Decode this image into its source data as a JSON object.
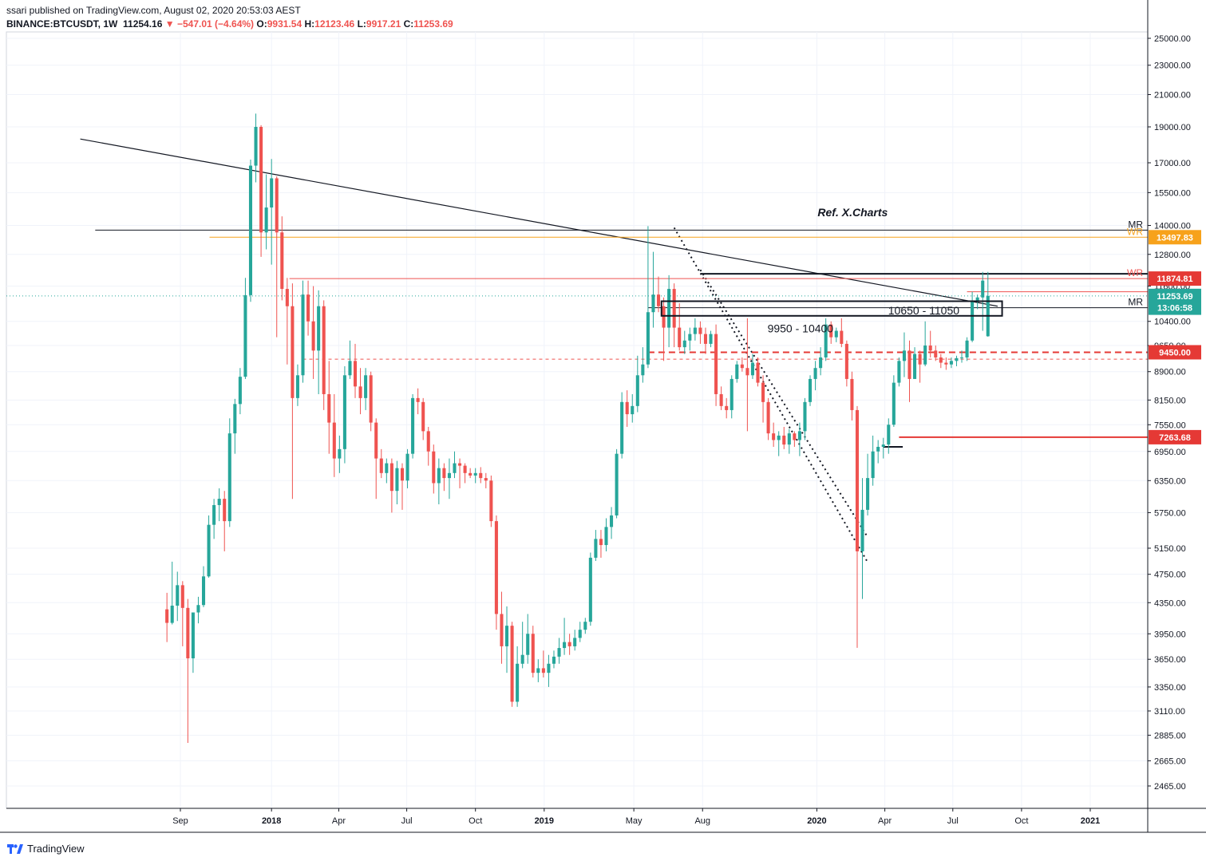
{
  "header": {
    "published": "ssari published on TradingView.com, August 02, 2020 20:53:03 AEST",
    "symbol": "BINANCE:BTCUSDT, 1W",
    "last": "11254.16",
    "change": "−547.01 (−4.64%)",
    "o_label": "O:",
    "o_val": "9931.54",
    "h_label": "H:",
    "h_val": "12123.46",
    "l_label": "L:",
    "l_val": "9917.21",
    "c_label": "C:",
    "c_val": "11253.69"
  },
  "footer": {
    "brand": "TradingView"
  },
  "colors": {
    "up": "#26a69a",
    "down": "#ef5350",
    "accent_orange": "#f7a21b",
    "red_tag": "#e53935"
  },
  "chart_data": {
    "type": "candlestick",
    "title": "",
    "timeframe": "1W",
    "y_scale": "log",
    "ylim": [
      2300,
      25500
    ],
    "y_ticks": [
      "25000.00",
      "23000.00",
      "21000.00",
      "19000.00",
      "17000.00",
      "15500.00",
      "14000.00",
      "12800.00",
      "11600.00",
      "10400.00",
      "9650.00",
      "8900.00",
      "8150.00",
      "7550.00",
      "6950.00",
      "6350.00",
      "5750.00",
      "5150.00",
      "4750.00",
      "4350.00",
      "3950.00",
      "3650.00",
      "3350.00",
      "3110.00",
      "2885.00",
      "2665.00",
      "2465.00"
    ],
    "x_ticks": [
      {
        "label": "Sep",
        "date": "2017-09-01",
        "bold": false
      },
      {
        "label": "2018",
        "date": "2018-01-01",
        "bold": true
      },
      {
        "label": "Apr",
        "date": "2018-04-01",
        "bold": false
      },
      {
        "label": "Jul",
        "date": "2018-07-01",
        "bold": false
      },
      {
        "label": "Oct",
        "date": "2018-10-01",
        "bold": false
      },
      {
        "label": "2019",
        "date": "2019-01-01",
        "bold": true
      },
      {
        "label": "May",
        "date": "2019-05-01",
        "bold": false
      },
      {
        "label": "Aug",
        "date": "2019-08-01",
        "bold": false
      },
      {
        "label": "2020",
        "date": "2020-01-01",
        "bold": true
      },
      {
        "label": "Apr",
        "date": "2020-04-01",
        "bold": false
      },
      {
        "label": "Jul",
        "date": "2020-07-01",
        "bold": false
      },
      {
        "label": "Oct",
        "date": "2020-10-01",
        "bold": false
      },
      {
        "label": "2021",
        "date": "2021-01-01",
        "bold": true
      }
    ],
    "first_bar_date": "2017-08-14",
    "ohlc": [
      [
        4261,
        4485,
        3850,
        4086
      ],
      [
        4086,
        4939,
        4066,
        4310
      ],
      [
        4310,
        4788,
        4110,
        4592
      ],
      [
        4592,
        4650,
        3800,
        4280
      ],
      [
        4280,
        4400,
        2817,
        3661
      ],
      [
        3661,
        4200,
        3500,
        4220
      ],
      [
        4220,
        4430,
        4080,
        4318
      ],
      [
        4318,
        4870,
        4290,
        4719
      ],
      [
        4719,
        5700,
        4700,
        5537
      ],
      [
        5537,
        6000,
        5300,
        5886
      ],
      [
        5886,
        6200,
        5600,
        6002
      ],
      [
        6002,
        6150,
        5100,
        5600
      ],
      [
        5600,
        7700,
        5500,
        7350
      ],
      [
        7350,
        8180,
        6900,
        8050
      ],
      [
        8050,
        9000,
        7800,
        8760
      ],
      [
        8760,
        11900,
        8700,
        11280
      ],
      [
        11280,
        17170,
        11050,
        16850
      ],
      [
        16850,
        19798,
        16000,
        19000
      ],
      [
        19000,
        19100,
        12700,
        13700
      ],
      [
        13700,
        16400,
        13000,
        14800
      ],
      [
        14800,
        17200,
        12400,
        16200
      ],
      [
        16200,
        16300,
        9900,
        13700
      ],
      [
        13700,
        14400,
        11100,
        11500
      ],
      [
        11500,
        11900,
        9100,
        10900
      ],
      [
        10900,
        11700,
        6000,
        8200
      ],
      [
        8200,
        9100,
        8000,
        8800
      ],
      [
        8800,
        11800,
        8600,
        11300
      ],
      [
        11300,
        11800,
        9950,
        10400
      ],
      [
        10400,
        11600,
        8700,
        9500
      ],
      [
        9500,
        11450,
        8300,
        10900
      ],
      [
        10900,
        11100,
        7900,
        8300
      ],
      [
        8300,
        9200,
        6900,
        7600
      ],
      [
        7600,
        8300,
        6420,
        6800
      ],
      [
        6800,
        7300,
        6500,
        7000
      ],
      [
        7000,
        9050,
        6700,
        8800
      ],
      [
        8800,
        9800,
        8700,
        9200
      ],
      [
        9200,
        9700,
        8200,
        8500
      ],
      [
        8500,
        9000,
        7800,
        8200
      ],
      [
        8200,
        9000,
        7900,
        8800
      ],
      [
        8800,
        8900,
        7400,
        7600
      ],
      [
        7600,
        7700,
        6000,
        6800
      ],
      [
        6800,
        7000,
        6400,
        6500
      ],
      [
        6500,
        6800,
        6300,
        6700
      ],
      [
        6700,
        6800,
        5750,
        6150
      ],
      [
        6150,
        6750,
        5900,
        6600
      ],
      [
        6600,
        6700,
        5800,
        6350
      ],
      [
        6350,
        7000,
        6200,
        6900
      ],
      [
        6900,
        8300,
        6800,
        8200
      ],
      [
        8200,
        8450,
        7800,
        8100
      ],
      [
        8100,
        8200,
        7200,
        7400
      ],
      [
        7400,
        7500,
        6650,
        6950
      ],
      [
        6950,
        7100,
        6100,
        6300
      ],
      [
        6300,
        6800,
        5900,
        6600
      ],
      [
        6600,
        6700,
        6150,
        6400
      ],
      [
        6400,
        6800,
        6000,
        6500
      ],
      [
        6500,
        6950,
        6400,
        6700
      ],
      [
        6700,
        6800,
        6200,
        6650
      ],
      [
        6650,
        6700,
        6300,
        6500
      ],
      [
        6500,
        6600,
        6400,
        6450
      ],
      [
        6450,
        6600,
        6300,
        6500
      ],
      [
        6500,
        6620,
        6300,
        6400
      ],
      [
        6400,
        6500,
        6200,
        6350
      ],
      [
        6350,
        6450,
        5500,
        5600
      ],
      [
        5600,
        5700,
        4000,
        4200
      ],
      [
        4200,
        4500,
        3600,
        3800
      ],
      [
        3800,
        4300,
        3500,
        4050
      ],
      [
        4050,
        4100,
        3150,
        3200
      ],
      [
        3200,
        3800,
        3150,
        3600
      ],
      [
        3600,
        4100,
        3550,
        3700
      ],
      [
        3700,
        4200,
        3600,
        3950
      ],
      [
        3950,
        4050,
        3450,
        3500
      ],
      [
        3500,
        3650,
        3400,
        3550
      ],
      [
        3550,
        3750,
        3450,
        3500
      ],
      [
        3500,
        3700,
        3350,
        3600
      ],
      [
        3600,
        3750,
        3550,
        3680
      ],
      [
        3680,
        3900,
        3600,
        3780
      ],
      [
        3780,
        4150,
        3700,
        3850
      ],
      [
        3850,
        3950,
        3700,
        3800
      ],
      [
        3800,
        4000,
        3750,
        3900
      ],
      [
        3900,
        4100,
        3850,
        4000
      ],
      [
        4000,
        4150,
        3950,
        4100
      ],
      [
        4100,
        5080,
        4050,
        5000
      ],
      [
        5000,
        5450,
        4950,
        5300
      ],
      [
        5300,
        5450,
        5000,
        5200
      ],
      [
        5200,
        5650,
        5100,
        5500
      ],
      [
        5500,
        5850,
        5300,
        5700
      ],
      [
        5700,
        7000,
        5650,
        6900
      ],
      [
        6900,
        8350,
        6800,
        8100
      ],
      [
        8100,
        8400,
        7500,
        7800
      ],
      [
        7800,
        8300,
        7600,
        8000
      ],
      [
        8000,
        9350,
        7850,
        8800
      ],
      [
        8800,
        9600,
        8600,
        9100
      ],
      [
        9100,
        13970,
        9000,
        10700
      ],
      [
        10700,
        12900,
        10200,
        11300
      ],
      [
        11300,
        11950,
        10700,
        10900
      ],
      [
        10900,
        11200,
        9200,
        10200
      ],
      [
        10200,
        12000,
        9600,
        11500
      ],
      [
        11500,
        11700,
        9600,
        10200
      ],
      [
        10200,
        11000,
        9500,
        9600
      ],
      [
        9600,
        10100,
        9400,
        9800
      ],
      [
        9800,
        10200,
        9500,
        10000
      ],
      [
        10000,
        10500,
        9800,
        10200
      ],
      [
        10200,
        10400,
        9700,
        10000
      ],
      [
        10000,
        10200,
        9400,
        9700
      ],
      [
        9700,
        10100,
        9600,
        10000
      ],
      [
        10000,
        10300,
        8000,
        8300
      ],
      [
        8300,
        8500,
        7900,
        8000
      ],
      [
        8000,
        8200,
        7700,
        7900
      ],
      [
        7900,
        8800,
        7700,
        8700
      ],
      [
        8700,
        9200,
        8600,
        9100
      ],
      [
        9100,
        9300,
        8900,
        9000
      ],
      [
        9000,
        10500,
        7400,
        8800
      ],
      [
        8800,
        9400,
        8700,
        9150
      ],
      [
        9150,
        9300,
        8500,
        8600
      ],
      [
        8600,
        8800,
        7600,
        8100
      ],
      [
        8100,
        8200,
        7200,
        7350
      ],
      [
        7350,
        7600,
        7050,
        7200
      ],
      [
        7200,
        7400,
        6850,
        7300
      ],
      [
        7300,
        7500,
        7000,
        7100
      ],
      [
        7100,
        7450,
        6900,
        7350
      ],
      [
        7350,
        7400,
        7050,
        7200
      ],
      [
        7200,
        7600,
        6850,
        7400
      ],
      [
        7400,
        8200,
        7200,
        8100
      ],
      [
        8100,
        8800,
        8000,
        8700
      ],
      [
        8700,
        9200,
        8400,
        9000
      ],
      [
        9000,
        9600,
        8800,
        9300
      ],
      [
        9300,
        10500,
        9200,
        10300
      ],
      [
        10300,
        10400,
        9700,
        9900
      ],
      [
        9900,
        10200,
        9750,
        10100
      ],
      [
        10100,
        10500,
        9600,
        9700
      ],
      [
        9700,
        9800,
        8500,
        8700
      ],
      [
        8700,
        8900,
        7650,
        7900
      ],
      [
        7900,
        8000,
        3782,
        5100
      ],
      [
        5100,
        6400,
        4400,
        5800
      ],
      [
        5800,
        6900,
        5700,
        6400
      ],
      [
        6400,
        7300,
        6250,
        6950
      ],
      [
        6950,
        7200,
        6700,
        7050
      ],
      [
        7050,
        7250,
        6800,
        7100
      ],
      [
        7100,
        7700,
        6900,
        7550
      ],
      [
        7550,
        8800,
        7500,
        8600
      ],
      [
        8600,
        9300,
        8500,
        9200
      ],
      [
        9200,
        10050,
        8750,
        9500
      ],
      [
        9500,
        9800,
        8100,
        8700
      ],
      [
        8700,
        9600,
        8700,
        9400
      ],
      [
        9400,
        9500,
        8600,
        9100
      ],
      [
        9100,
        10400,
        9050,
        9650
      ],
      [
        9650,
        10100,
        9300,
        9500
      ],
      [
        9500,
        9650,
        9200,
        9300
      ],
      [
        9300,
        9400,
        9000,
        9150
      ],
      [
        9150,
        9300,
        8950,
        9100
      ],
      [
        9100,
        9300,
        9000,
        9200
      ],
      [
        9200,
        9350,
        9050,
        9280
      ],
      [
        9280,
        9500,
        9150,
        9300
      ],
      [
        9300,
        9900,
        9200,
        9800
      ],
      [
        9800,
        11400,
        9750,
        11050
      ],
      [
        11050,
        11300,
        10800,
        11200
      ],
      [
        11200,
        12123,
        10100,
        11800
      ],
      [
        9931.54,
        12123.46,
        9917.21,
        11253.69
      ]
    ],
    "trendlines": [
      {
        "from": [
          "2017-04-20",
          18300
        ],
        "to": [
          "2020-08-30",
          10900
        ],
        "style": "solid",
        "color": "#131722"
      }
    ],
    "dotted_lines": [
      {
        "from": [
          "2019-06-24",
          13900
        ],
        "to": [
          "2020-03-08",
          4950
        ]
      },
      {
        "from": [
          "2019-07-29",
          12200
        ],
        "to": [
          "2020-03-08",
          5350
        ]
      }
    ],
    "h_lines": [
      {
        "from": "2017-05-10",
        "to": "2021-04-01",
        "price": 13800,
        "color": "#131722",
        "width": 1,
        "label": "MR"
      },
      {
        "from": "2017-10-10",
        "to": "2021-04-01",
        "price": 13497.83,
        "color": "#f7a21b",
        "width": 1,
        "label": "WR"
      },
      {
        "from": "2018-01-25",
        "to": "2021-04-01",
        "price": 11874.81,
        "color": "#ef5350",
        "width": 1,
        "label": "WR"
      },
      {
        "from": "2019-07-29",
        "to": "2021-04-01",
        "price": 12050,
        "color": "#131722",
        "width": 2,
        "label": ""
      },
      {
        "from": "2020-07-20",
        "to": "2021-04-01",
        "price": 11400,
        "color": "#ef5350",
        "width": 1,
        "label": ""
      },
      {
        "from": "2019-05-20",
        "to": "2021-04-01",
        "price": 10850,
        "color": "#131722",
        "width": 1,
        "label": "MR"
      },
      {
        "from": "2019-05-20",
        "to": "2021-04-01",
        "price": 9450,
        "color": "#e53935",
        "width": 2,
        "dash": "8,5",
        "label": ""
      },
      {
        "from": "2018-02-12",
        "to": "2021-04-01",
        "price": 9250,
        "color": "#ef5350",
        "width": 1,
        "dash": "4,4",
        "label": ""
      },
      {
        "from": "2020-04-20",
        "to": "2021-04-01",
        "price": 7263.68,
        "color": "#e53935",
        "width": 2,
        "label": ""
      },
      {
        "from": "2020-03-30",
        "to": "2020-04-25",
        "price": 7050,
        "color": "#131722",
        "width": 2,
        "label": ""
      }
    ],
    "boxes": [
      {
        "from": "2019-06-07",
        "to": "2020-09-05",
        "top": 11070,
        "bottom": 10580,
        "label": "10650 - 11050"
      }
    ],
    "text_annotations": [
      {
        "text": "Ref. X.Charts",
        "at": [
          "2020-02-18",
          14400
        ],
        "italic": true,
        "bold": true
      },
      {
        "text": "9950 - 10400",
        "at": [
          "2019-12-10",
          10050
        ],
        "italic": false,
        "bold": false
      }
    ],
    "price_tags": [
      {
        "text": "13497.83",
        "price": 13497.83,
        "bg": "#f7a21b"
      },
      {
        "text": "11874.81",
        "price": 11874.81,
        "bg": "#e53935"
      },
      {
        "text": "11253.69",
        "price": 11253.69,
        "bg": "#26a69a"
      },
      {
        "text": "13:06:58",
        "price": 10850,
        "bg": "#26a69a"
      },
      {
        "text": "9450.00",
        "price": 9450,
        "bg": "#e53935"
      },
      {
        "text": "7263.68",
        "price": 7263.68,
        "bg": "#e53935"
      }
    ],
    "last_price": 11253.69
  }
}
